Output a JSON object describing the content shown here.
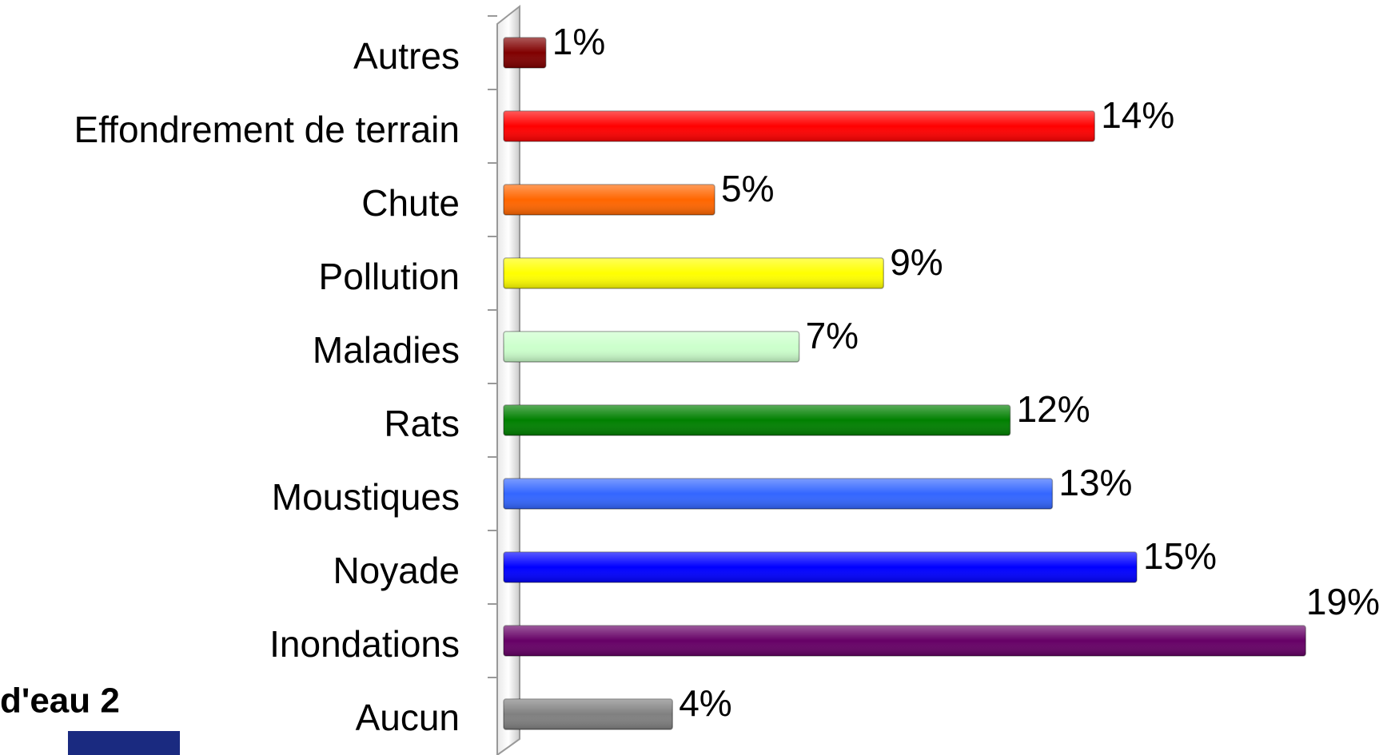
{
  "chart_data": {
    "type": "bar",
    "orientation": "horizontal",
    "categories": [
      "Autres",
      "Effondrement de terrain",
      "Chute",
      "Pollution",
      "Maladies",
      "Rats",
      "Moustiques",
      "Noyade",
      "Inondations",
      "Aucun"
    ],
    "values": [
      1,
      14,
      5,
      9,
      7,
      12,
      13,
      15,
      19,
      4
    ],
    "value_labels": [
      "1%",
      "14%",
      "5%",
      "9%",
      "7%",
      "12%",
      "13%",
      "15%",
      "19%",
      "4%"
    ],
    "colors": [
      "#800000",
      "#ff0000",
      "#ff6600",
      "#ffff00",
      "#ccffcc",
      "#008000",
      "#3366ff",
      "#0000ff",
      "#660066",
      "#808080"
    ],
    "xlim": [
      0,
      20
    ]
  },
  "footer_logo": "d'eau 2"
}
